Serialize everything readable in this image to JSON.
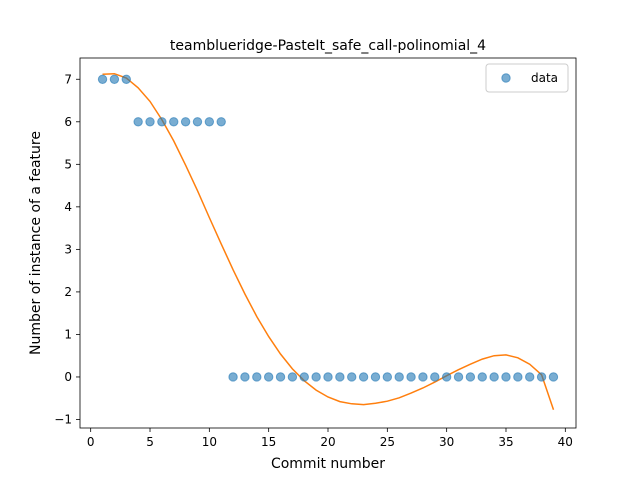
{
  "chart_data": {
    "type": "scatter",
    "title": "teamblueridge-PasteIt_safe_call-polinomial_4",
    "xlabel": "Commit number",
    "ylabel": "Number of instance of a feature",
    "xlim": [
      -0.9,
      40.9
    ],
    "ylim": [
      -1.2,
      7.5
    ],
    "xticks": [
      0,
      5,
      10,
      15,
      20,
      25,
      30,
      35,
      40
    ],
    "yticks": [
      -1,
      0,
      1,
      2,
      3,
      4,
      5,
      6,
      7
    ],
    "legend_position": "top-right",
    "grid": false,
    "series": [
      {
        "name": "data",
        "kind": "scatter",
        "color": "#1f77b4",
        "x": [
          1,
          2,
          3,
          4,
          5,
          6,
          7,
          8,
          9,
          10,
          11,
          12,
          13,
          14,
          15,
          16,
          17,
          18,
          19,
          20,
          21,
          22,
          23,
          24,
          25,
          26,
          27,
          28,
          29,
          30,
          31,
          32,
          33,
          34,
          35,
          36,
          37,
          38,
          39
        ],
        "y": [
          7,
          7,
          7,
          6,
          6,
          6,
          6,
          6,
          6,
          6,
          6,
          0,
          0,
          0,
          0,
          0,
          0,
          0,
          0,
          0,
          0,
          0,
          0,
          0,
          0,
          0,
          0,
          0,
          0,
          0,
          0,
          0,
          0,
          0,
          0,
          0,
          0,
          0,
          0
        ]
      },
      {
        "kind": "line",
        "color": "#ff7f0e",
        "x": [
          1,
          2,
          3,
          4,
          5,
          6,
          7,
          8,
          9,
          10,
          11,
          12,
          13,
          14,
          15,
          16,
          17,
          18,
          19,
          20,
          21,
          22,
          23,
          24,
          25,
          26,
          27,
          28,
          29,
          30,
          31,
          32,
          33,
          34,
          35,
          36,
          37,
          38,
          39
        ],
        "y": [
          7.12,
          7.13,
          7.03,
          6.8,
          6.48,
          6.05,
          5.55,
          4.98,
          4.38,
          3.75,
          3.13,
          2.52,
          1.95,
          1.42,
          0.95,
          0.54,
          0.19,
          -0.09,
          -0.31,
          -0.47,
          -0.58,
          -0.63,
          -0.65,
          -0.62,
          -0.57,
          -0.49,
          -0.38,
          -0.26,
          -0.12,
          0.03,
          0.17,
          0.3,
          0.42,
          0.5,
          0.52,
          0.45,
          0.3,
          0.05,
          -0.77
        ]
      }
    ],
    "legend": [
      {
        "label": "data"
      }
    ]
  }
}
